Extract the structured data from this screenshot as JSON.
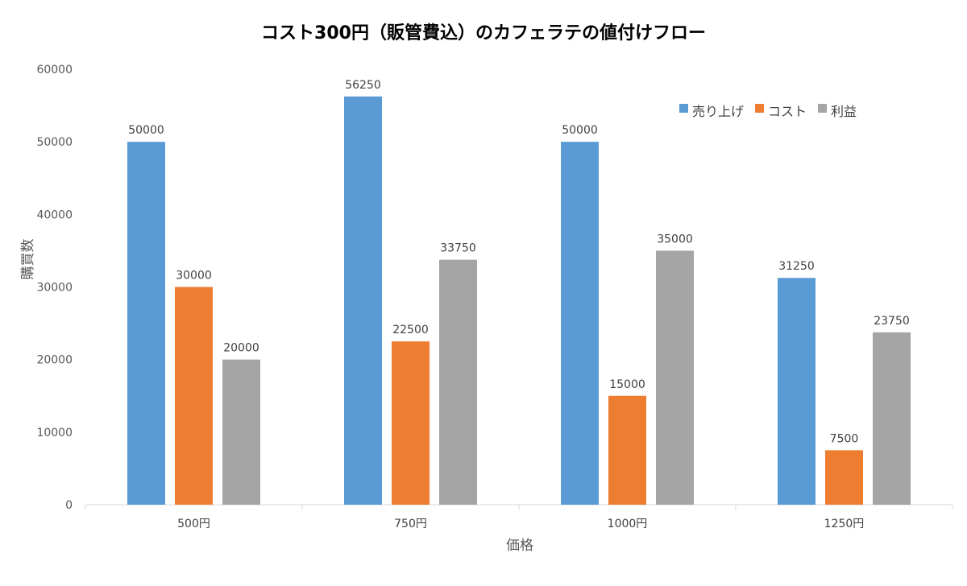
{
  "chart_data": {
    "type": "bar",
    "title": "コスト300円（販管費込）のカフェラテの値付けフロー",
    "xlabel": "価格",
    "ylabel": "購買数",
    "categories": [
      "500円",
      "750円",
      "1000円",
      "1250円"
    ],
    "ylim": [
      0,
      60000
    ],
    "yticks": [
      0,
      10000,
      20000,
      30000,
      40000,
      50000,
      60000
    ],
    "grid": false,
    "legend_position": "top-right",
    "series": [
      {
        "name": "売り上げ",
        "color": "#5B9BD5",
        "values": [
          50000,
          56250,
          50000,
          31250
        ]
      },
      {
        "name": "コスト",
        "color": "#ED7D31",
        "values": [
          30000,
          22500,
          15000,
          7500
        ]
      },
      {
        "name": "利益",
        "color": "#A5A5A5",
        "values": [
          20000,
          33750,
          35000,
          23750
        ]
      }
    ]
  }
}
